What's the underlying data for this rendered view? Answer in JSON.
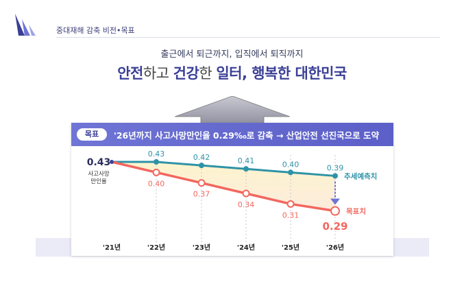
{
  "header": {
    "title": "중대재해 감축 비전•목표"
  },
  "vision": {
    "subtitle": "출근에서 퇴근까지, 입직에서 퇴직까지",
    "headline_parts": [
      "안전",
      "하고 ",
      "건강",
      "한 ",
      "일터, 행복한 대한민국"
    ]
  },
  "goal": {
    "badge": "목표",
    "text": "'26년까지 사고사망만인율 0.29‰로 감축 → 산업안전 선진국으로 도약"
  },
  "colors": {
    "trend": "#2e93a6",
    "target": "#f2675e",
    "header": "#5b5fc7",
    "accent": "#3a3f96"
  },
  "chart_data": {
    "type": "line",
    "categories": [
      "'21년",
      "'22년",
      "'23년",
      "'24년",
      "'25년",
      "'26년"
    ],
    "ylabel": "사고사망\n만인율",
    "start_value": 0.43,
    "series": [
      {
        "name": "추세예측치",
        "values": [
          0.43,
          0.43,
          0.42,
          0.41,
          0.4,
          0.39
        ]
      },
      {
        "name": "목표치",
        "values": [
          0.43,
          0.4,
          0.37,
          0.34,
          0.31,
          0.29
        ]
      }
    ],
    "final_target_label": "0.29"
  }
}
